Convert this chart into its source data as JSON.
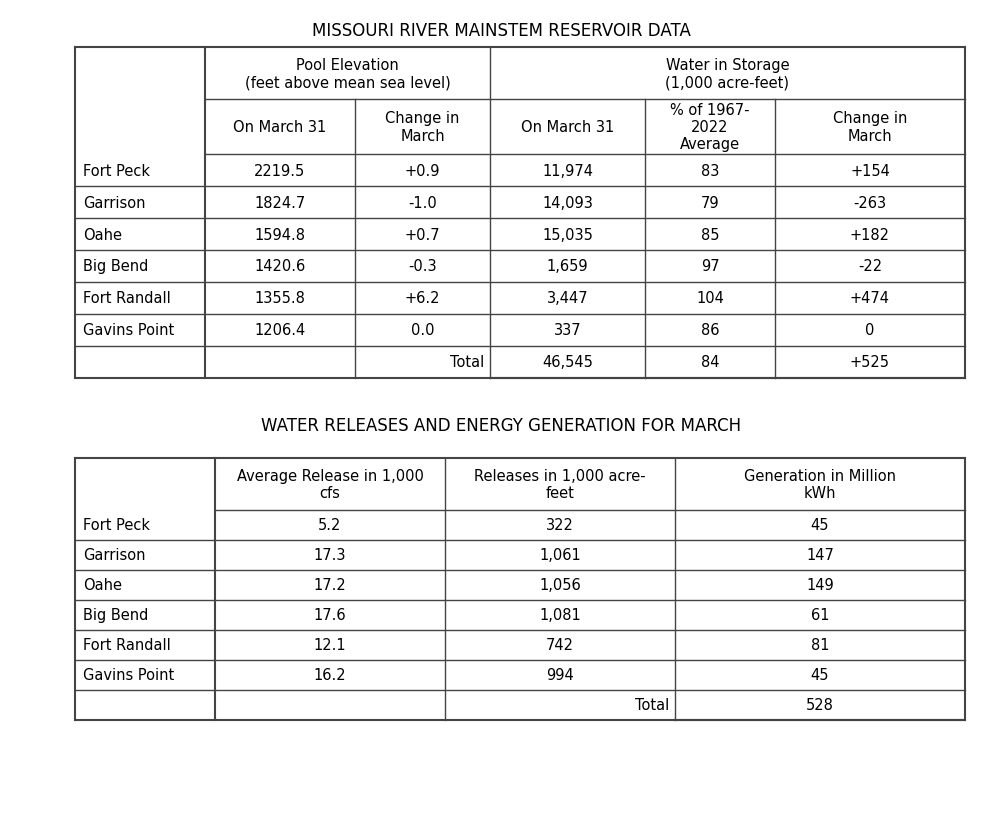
{
  "title1": "MISSOURI RIVER MAINSTEM RESERVOIR DATA",
  "title2": "WATER RELEASES AND ENERGY GENERATION FOR MARCH",
  "table1": {
    "group_header1": "Pool Elevation\n(feet above mean sea level)",
    "group_header2": "Water in Storage\n(1,000 acre-feet)",
    "sub_headers": [
      "On March 31",
      "Change in\nMarch",
      "On March 31",
      "% of 1967-\n2022\nAverage",
      "Change in\nMarch"
    ],
    "rows": [
      [
        "Fort Peck",
        "2219.5",
        "+0.9",
        "11,974",
        "83",
        "+154"
      ],
      [
        "Garrison",
        "1824.7",
        "-1.0",
        "14,093",
        "79",
        "-263"
      ],
      [
        "Oahe",
        "1594.8",
        "+0.7",
        "15,035",
        "85",
        "+182"
      ],
      [
        "Big Bend",
        "1420.6",
        "-0.3",
        "1,659",
        "97",
        "-22"
      ],
      [
        "Fort Randall",
        "1355.8",
        "+6.2",
        "3,447",
        "104",
        "+474"
      ],
      [
        "Gavins Point",
        "1206.4",
        "0.0",
        "337",
        "86",
        "0"
      ]
    ],
    "total_vals": [
      "46,545",
      "84",
      "+525"
    ]
  },
  "table2": {
    "col_headers": [
      "Average Release in 1,000\ncfs",
      "Releases in 1,000 acre-\nfeet",
      "Generation in Million\nkWh"
    ],
    "rows": [
      [
        "Fort Peck",
        "5.2",
        "322",
        "45"
      ],
      [
        "Garrison",
        "17.3",
        "1,061",
        "147"
      ],
      [
        "Oahe",
        "17.2",
        "1,056",
        "149"
      ],
      [
        "Big Bend",
        "17.6",
        "1,081",
        "61"
      ],
      [
        "Fort Randall",
        "12.1",
        "742",
        "81"
      ],
      [
        "Gavins Point",
        "16.2",
        "994",
        "45"
      ]
    ],
    "total_val": "528"
  },
  "bg_color": "#ffffff",
  "line_color": "#444444",
  "title_fontsize": 12,
  "header_fontsize": 10.5,
  "cell_fontsize": 10.5,
  "font_family": "DejaVu Sans"
}
